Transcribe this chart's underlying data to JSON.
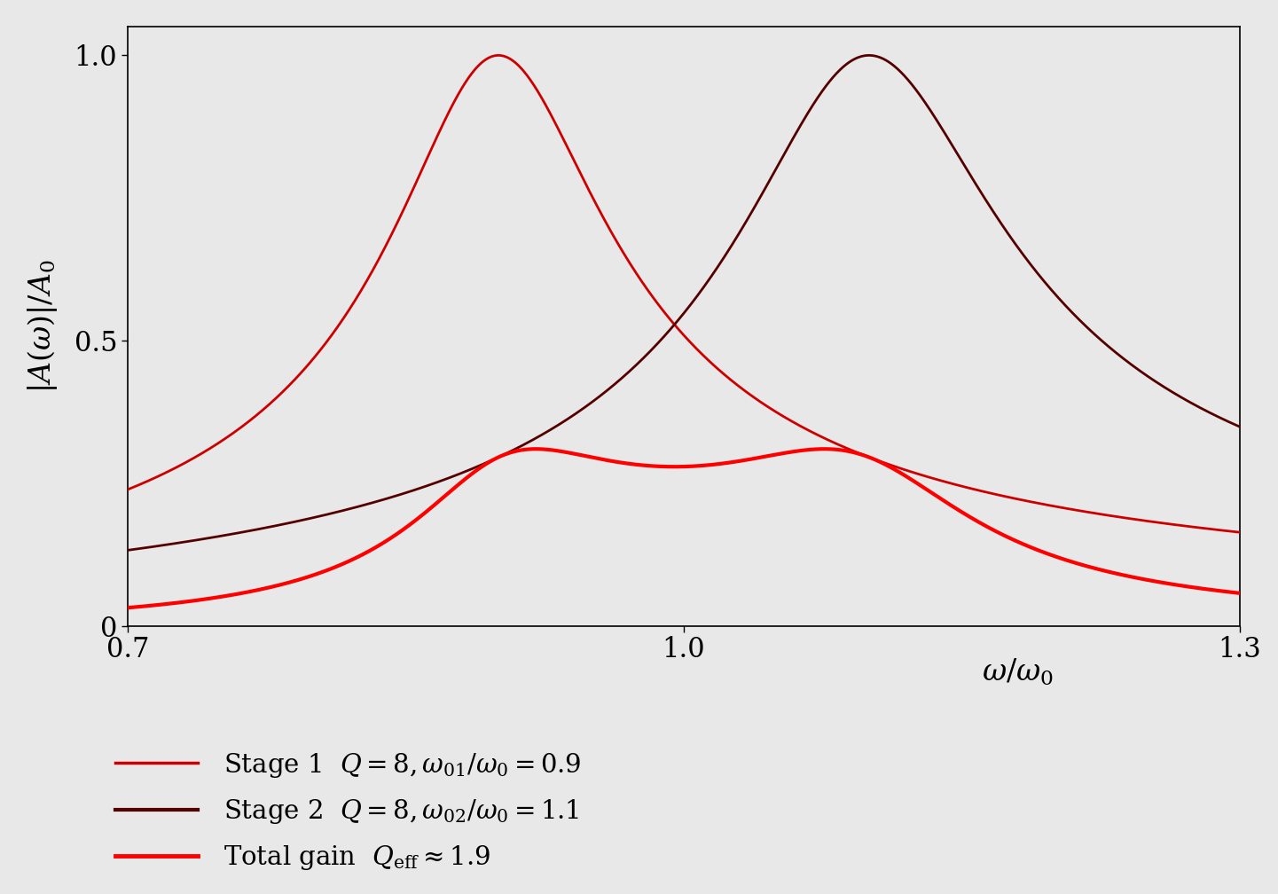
{
  "Q": 8,
  "omega01_ratio": 0.9,
  "omega02_ratio": 1.1,
  "x_min": 0.7,
  "x_max": 1.3,
  "y_min": 0.0,
  "y_max": 1.05,
  "xtick_vals": [
    0.7,
    1.0,
    1.3
  ],
  "xtick_labels": [
    "0.7",
    "1.0",
    "1.3"
  ],
  "ytick_vals": [
    0,
    0.5,
    1.0
  ],
  "ytick_labels": [
    "0",
    "0.5",
    "1.0"
  ],
  "xlabel": "$\\omega/\\omega_0$",
  "ylabel": "$|A(\\omega)|/A_0$",
  "stage1_color": "#cc0000",
  "stage2_color": "#550000",
  "total_color": "#ff0000",
  "stage1_lw": 2.0,
  "stage2_lw": 2.0,
  "total_lw": 3.0,
  "background_color": "#e8e8e8",
  "plot_bg_color": "#e8e8e8",
  "legend_labels": [
    "Stage 1  $Q = 8, \\omega_{01}/\\omega_0 = 0.9$",
    "Stage 2  $Q = 8, \\omega_{02}/\\omega_0 = 1.1$",
    "Total gain  $Q_{\\mathrm{eff}} \\approx 1.9$"
  ],
  "legend_colors": [
    "#cc0000",
    "#550000",
    "#ff0000"
  ],
  "legend_linewidths": [
    2.5,
    3.0,
    3.5
  ],
  "figsize": [
    14.41,
    10.08
  ],
  "dpi": 100
}
